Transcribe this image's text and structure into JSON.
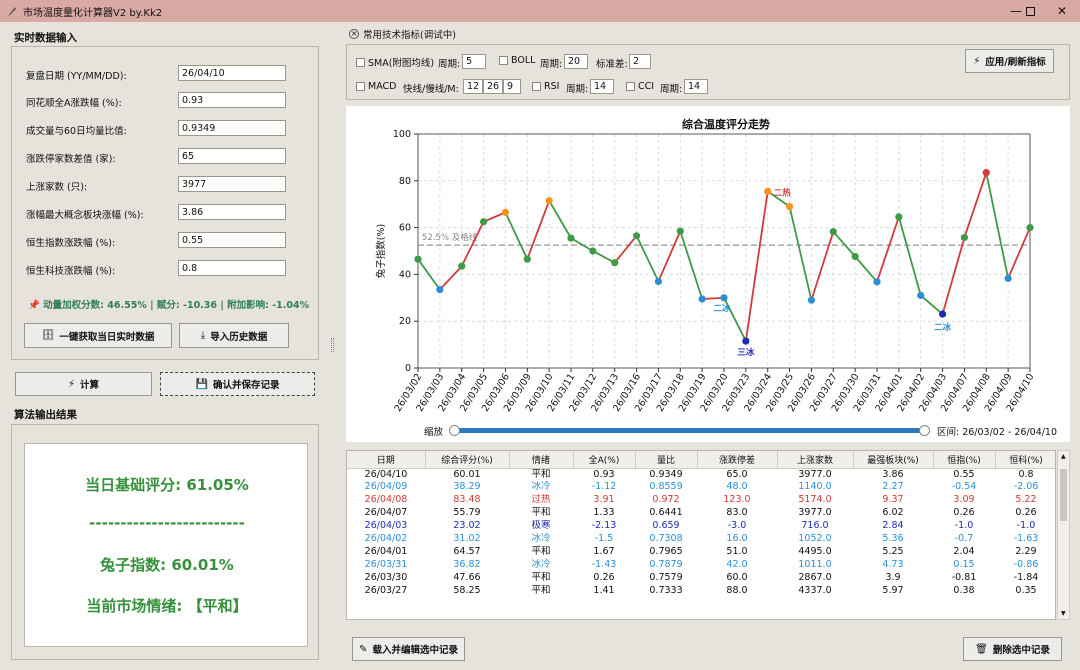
{
  "window": {
    "title": "市场温度量化计算器V2 by.Kk2"
  },
  "input_section": {
    "title": "实时数据输入",
    "fields": [
      {
        "label": "复盘日期 (YY/MM/DD):",
        "value": "26/04/10"
      },
      {
        "label": "同花顺全A涨跌幅 (%):",
        "value": "0.93"
      },
      {
        "label": "成交量与60日均量比值:",
        "value": "0.9349"
      },
      {
        "label": "涨跌停家数差值 (家):",
        "value": "65"
      },
      {
        "label": "上涨家数 (只):",
        "value": "3977"
      },
      {
        "label": "涨幅最大概念板块涨幅 (%):",
        "value": "3.86"
      },
      {
        "label": "恒生指数涨跌幅 (%):",
        "value": "0.55"
      },
      {
        "label": "恒生科技涨跌幅 (%):",
        "value": "0.8"
      }
    ],
    "momentum": "动量加权分数: 46.55% | 赋分: -10.36 | 附加影响: -1.04%",
    "fetch_button": "一键获取当日实时数据",
    "import_button": "导入历史数据"
  },
  "actions": {
    "calc_button": "计算",
    "save_button": "确认并保存记录"
  },
  "output_section": {
    "title": "算法输出结果",
    "base_score": "当日基础评分: 61.05%",
    "separator": "-------------------------",
    "rabbit_index": "兔子指数: 60.01%",
    "mood": "当前市场情绪: 【平和】"
  },
  "indicators": {
    "title": "常用技术指标(调试中)",
    "sma_label": "SMA(附图均线)",
    "sma_period_label": "周期:",
    "sma_period": "5",
    "boll_label": "BOLL",
    "boll_period_label": "周期:",
    "boll_period": "20",
    "boll_std_label": "标准差:",
    "boll_std": "2",
    "macd_label": "MACD",
    "macd_params_label": "快线/慢线/M:",
    "macd_fast": "12",
    "macd_slow": "26",
    "macd_m": "9",
    "rsi_label": "RSI",
    "rsi_period_label": "周期:",
    "rsi_period": "14",
    "cci_label": "CCI",
    "cci_period_label": "周期:",
    "cci_period": "14",
    "apply_button": "应用/刷新指标"
  },
  "chart_data": {
    "type": "line",
    "title": "综合温度评分走势",
    "ylabel": "兔子指数(%)",
    "ylim": [
      0,
      100
    ],
    "yticks": [
      0,
      20,
      40,
      60,
      80,
      100
    ],
    "grid": true,
    "categories": [
      "26/03/02",
      "26/03/03",
      "26/03/04",
      "26/03/05",
      "26/03/06",
      "26/03/09",
      "26/03/10",
      "26/03/11",
      "26/03/12",
      "26/03/13",
      "26/03/16",
      "26/03/17",
      "26/03/18",
      "26/03/19",
      "26/03/20",
      "26/03/23",
      "26/03/24",
      "26/03/25",
      "26/03/26",
      "26/03/27",
      "26/03/30",
      "26/03/31",
      "26/04/01",
      "26/04/02",
      "26/04/03",
      "26/04/07",
      "26/04/08",
      "26/04/09",
      "26/04/10"
    ],
    "values": [
      46.5,
      33.5,
      43.5,
      62.5,
      66.5,
      46.5,
      71.5,
      55.5,
      50,
      45,
      56.5,
      37,
      58.5,
      29.5,
      30,
      11.5,
      75.5,
      69,
      29,
      58.25,
      47.66,
      36.82,
      64.57,
      31.02,
      23.02,
      55.79,
      83.48,
      38.29,
      60.01
    ],
    "colors": {
      "normal": "#3f9a45",
      "cold": "#2b8fd6",
      "hot": "#f7941d",
      "extreme_hot": "#d33a3a",
      "extreme_cold": "#1f2bb5",
      "up_line": "#d33a3a",
      "down_line": "#3f9a45"
    },
    "reference": {
      "value": 52.5,
      "label": "52.5% 及格线"
    },
    "annotations": [
      {
        "index": 14,
        "text": "二冰"
      },
      {
        "index": 15,
        "text": "三冰"
      },
      {
        "index": 16,
        "text": "二热"
      },
      {
        "index": 24,
        "text": "二冰"
      }
    ]
  },
  "zoom": {
    "label": "缩放",
    "range": "区间: 26/03/02 - 26/04/10",
    "start_fraction": 0,
    "end_fraction": 1
  },
  "table": {
    "headers": [
      "日期",
      "综合评分(%)",
      "情绪",
      "全A(%)",
      "量比",
      "涨跌停差",
      "上涨家数",
      "最强板块(%)",
      "恒指(%)",
      "恒科(%)"
    ],
    "rows": [
      {
        "cells": [
          "26/04/10",
          "60.01",
          "平和",
          "0.93",
          "0.9349",
          "65.0",
          "3977.0",
          "3.86",
          "0.55",
          "0.8"
        ],
        "color": "#111111"
      },
      {
        "cells": [
          "26/04/09",
          "38.29",
          "冰冷",
          "-1.12",
          "0.8559",
          "48.0",
          "1140.0",
          "2.27",
          "-0.54",
          "-2.06"
        ],
        "color": "#2b8fd6"
      },
      {
        "cells": [
          "26/04/08",
          "83.48",
          "过热",
          "3.91",
          "0.972",
          "123.0",
          "5174.0",
          "9.37",
          "3.09",
          "5.22"
        ],
        "color": "#d33a3a"
      },
      {
        "cells": [
          "26/04/07",
          "55.79",
          "平和",
          "1.33",
          "0.6441",
          "83.0",
          "3977.0",
          "6.02",
          "0.26",
          "0.26"
        ],
        "color": "#111111"
      },
      {
        "cells": [
          "26/04/03",
          "23.02",
          "极寒",
          "-2.13",
          "0.659",
          "-3.0",
          "716.0",
          "2.84",
          "-1.0",
          "-1.0"
        ],
        "color": "#1f2bb5"
      },
      {
        "cells": [
          "26/04/02",
          "31.02",
          "冰冷",
          "-1.5",
          "0.7308",
          "16.0",
          "1052.0",
          "5.36",
          "-0.7",
          "-1.63"
        ],
        "color": "#2b8fd6"
      },
      {
        "cells": [
          "26/04/01",
          "64.57",
          "平和",
          "1.67",
          "0.7965",
          "51.0",
          "4495.0",
          "5.25",
          "2.04",
          "2.29"
        ],
        "color": "#111111"
      },
      {
        "cells": [
          "26/03/31",
          "36.82",
          "冰冷",
          "-1.43",
          "0.7879",
          "42.0",
          "1011.0",
          "4.73",
          "0.15",
          "-0.86"
        ],
        "color": "#2b8fd6"
      },
      {
        "cells": [
          "26/03/30",
          "47.66",
          "平和",
          "0.26",
          "0.7579",
          "60.0",
          "2867.0",
          "3.9",
          "-0.81",
          "-1.84"
        ],
        "color": "#111111"
      },
      {
        "cells": [
          "26/03/27",
          "58.25",
          "平和",
          "1.41",
          "0.7333",
          "88.0",
          "4337.0",
          "5.97",
          "0.38",
          "0.35"
        ],
        "color": "#111111"
      }
    ]
  },
  "bottom_actions": {
    "load_edit_button": "载入并编辑选中记录",
    "delete_button": "删除选中记录"
  }
}
